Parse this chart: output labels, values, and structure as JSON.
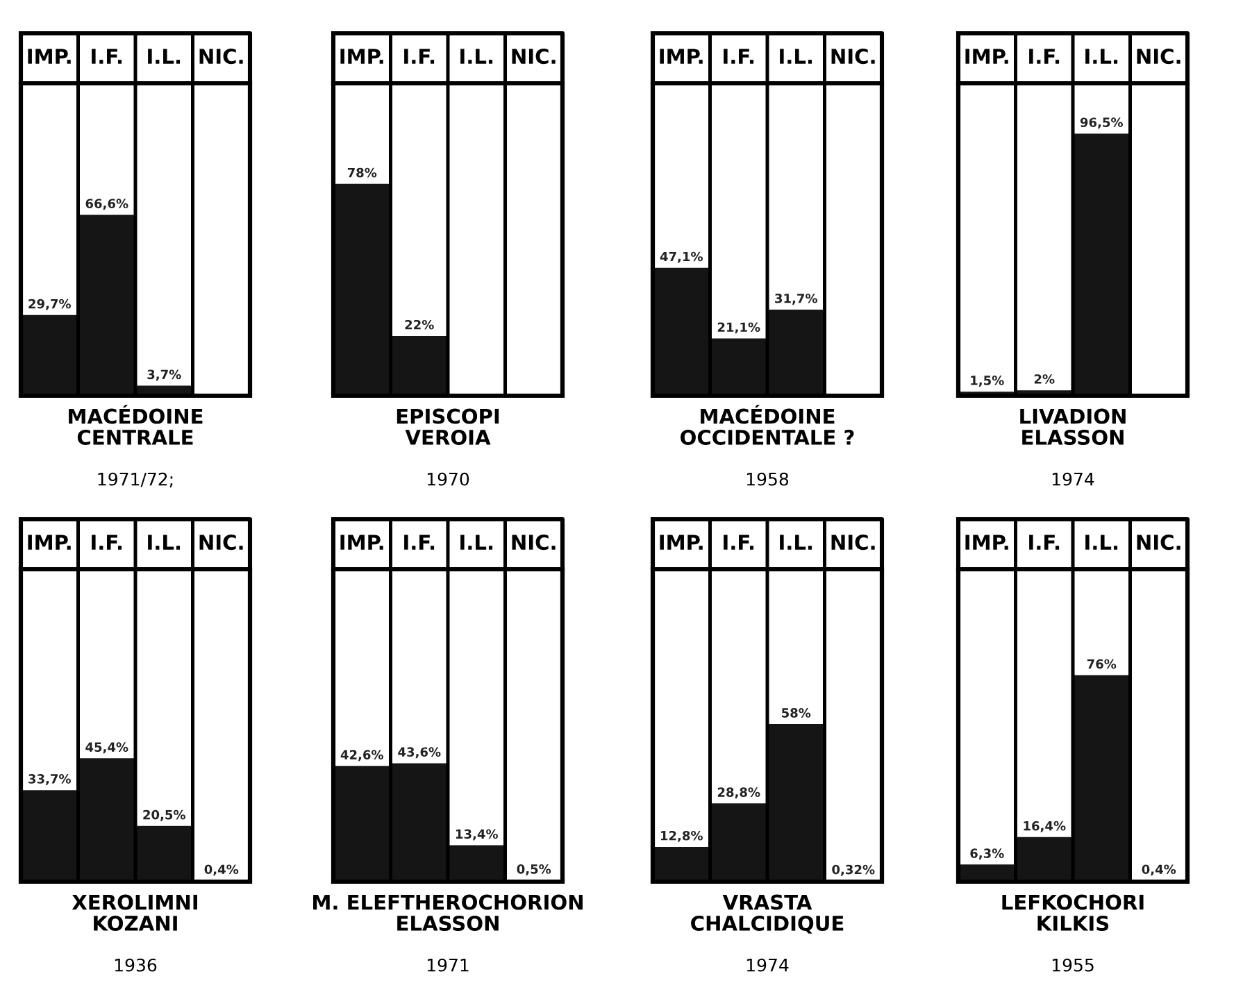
{
  "chart_data": [
    {
      "type": "bar",
      "title": "MACÉDOINE\nCENTRALE",
      "subtitle": "1971/72;",
      "categories": [
        "IMP.",
        "I.F.",
        "I.L.",
        "NIC."
      ],
      "values": [
        29.7,
        66.6,
        3.7,
        null
      ],
      "value_labels": [
        "29,7%",
        "66,6%",
        "3,7%",
        null
      ],
      "color": "#151515",
      "ylim": [
        0,
        115
      ],
      "tick_labels": "x"
    },
    {
      "type": "bar",
      "title": "EPISCOPI\nVEROIA",
      "subtitle": "1970",
      "categories": [
        "IMP.",
        "I.F.",
        "I.L.",
        "NIC."
      ],
      "values": [
        78,
        22,
        null,
        null
      ],
      "value_labels": [
        "78%",
        "22%",
        null,
        null
      ],
      "color": "#151515",
      "ylim": [
        0,
        115
      ],
      "tick_labels": "x"
    },
    {
      "type": "bar",
      "title": "MACÉDOINE\nOCCIDENTALE ?",
      "subtitle": "1958",
      "categories": [
        "IMP.",
        "I.F.",
        "I.L.",
        "NIC."
      ],
      "values": [
        47.1,
        21.1,
        31.7,
        null
      ],
      "value_labels": [
        "47,1%",
        "21,1%",
        "31,7%",
        null
      ],
      "color": "#151515",
      "ylim": [
        0,
        115
      ],
      "tick_labels": "x"
    },
    {
      "type": "bar",
      "title": "LIVADION\nELASSON",
      "subtitle": "1974",
      "categories": [
        "IMP.",
        "I.F.",
        "I.L.",
        "NIC."
      ],
      "values": [
        1.5,
        2,
        96.5,
        null
      ],
      "value_labels": [
        "1,5%",
        "2%",
        "96,5%",
        null
      ],
      "color": "#151515",
      "ylim": [
        0,
        115
      ],
      "tick_labels": "x"
    },
    {
      "type": "bar",
      "title": "XEROLIMNI\nKOZANI",
      "subtitle": "1936",
      "categories": [
        "IMP.",
        "I.F.",
        "I.L.",
        "NIC."
      ],
      "values": [
        33.7,
        45.4,
        20.5,
        0.4
      ],
      "value_labels": [
        "33,7%",
        "45,4%",
        "20,5%",
        "0,4%"
      ],
      "color": "#151515",
      "ylim": [
        0,
        115
      ],
      "tick_labels": "x"
    },
    {
      "type": "bar",
      "title": "M. ELEFTHEROCHORION\nELASSON",
      "subtitle": "1971",
      "categories": [
        "IMP.",
        "I.F.",
        "I.L.",
        "NIC."
      ],
      "values": [
        42.6,
        43.6,
        13.4,
        0.5
      ],
      "value_labels": [
        "42,6%",
        "43,6%",
        "13,4%",
        "0,5%"
      ],
      "color": "#151515",
      "ylim": [
        0,
        115
      ],
      "tick_labels": "x"
    },
    {
      "type": "bar",
      "title": "VRASTA\nCHALCIDIQUE",
      "subtitle": "1974",
      "categories": [
        "IMP.",
        "I.F.",
        "I.L.",
        "NIC."
      ],
      "values": [
        12.8,
        28.8,
        58,
        0.32
      ],
      "value_labels": [
        "12,8%",
        "28,8%",
        "58%",
        "0,32%"
      ],
      "color": "#151515",
      "ylim": [
        0,
        115
      ],
      "tick_labels": "x"
    },
    {
      "type": "bar",
      "title": "LEFKOCHORI\nKILKIS",
      "subtitle": "1955",
      "categories": [
        "IMP.",
        "I.F.",
        "I.L.",
        "NIC."
      ],
      "values": [
        6.3,
        16.4,
        76,
        0.4
      ],
      "value_labels": [
        "6,3%",
        "16,4%",
        "76%",
        "0,4%"
      ],
      "color": "#151515",
      "ylim": [
        0,
        115
      ],
      "tick_labels": "x"
    }
  ]
}
